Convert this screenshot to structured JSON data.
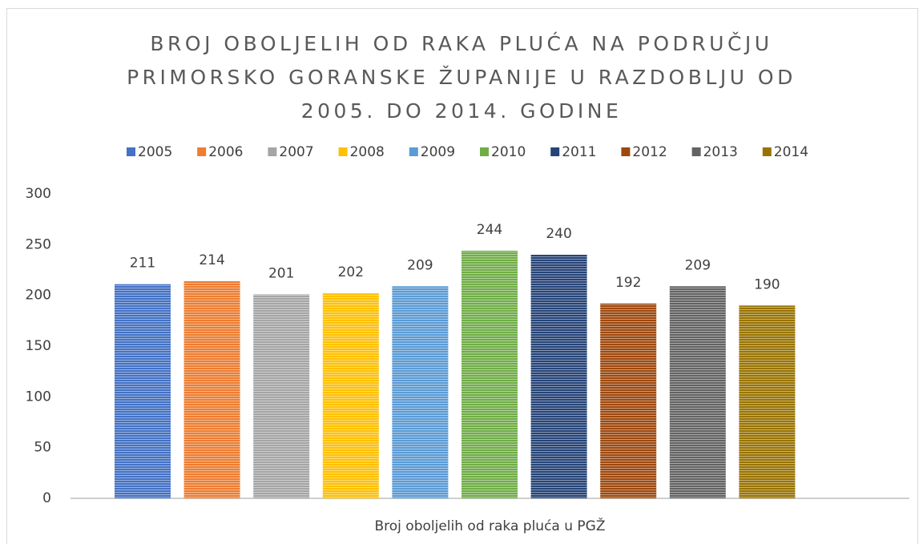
{
  "chart_data": {
    "type": "bar",
    "title": "BROJ OBOLJELIH OD RAKA PLUĆA NA PODRUČJU PRIMORSKO GORANSKE ŽUPANIJE U RAZDOBLJU OD 2005. DO 2014. GODINE",
    "categories": [
      "Broj oboljelih od raka pluća u PGŽ"
    ],
    "series": [
      {
        "name": "2005",
        "color": "#4472c4",
        "values": [
          211
        ]
      },
      {
        "name": "2006",
        "color": "#ed7d31",
        "values": [
          214
        ]
      },
      {
        "name": "2007",
        "color": "#a5a5a5",
        "values": [
          201
        ]
      },
      {
        "name": "2008",
        "color": "#ffc000",
        "values": [
          202
        ]
      },
      {
        "name": "2009",
        "color": "#5b9bd5",
        "values": [
          209
        ]
      },
      {
        "name": "2010",
        "color": "#70ad47",
        "values": [
          244
        ]
      },
      {
        "name": "2011",
        "color": "#264478",
        "values": [
          240
        ]
      },
      {
        "name": "2012",
        "color": "#9e480e",
        "values": [
          192
        ]
      },
      {
        "name": "2013",
        "color": "#636363",
        "values": [
          209
        ]
      },
      {
        "name": "2014",
        "color": "#997300",
        "values": [
          190
        ]
      }
    ],
    "ylim": [
      0,
      300
    ],
    "yticks": [
      0,
      50,
      100,
      150,
      200,
      250,
      300
    ],
    "grid": false,
    "legend": "top"
  }
}
